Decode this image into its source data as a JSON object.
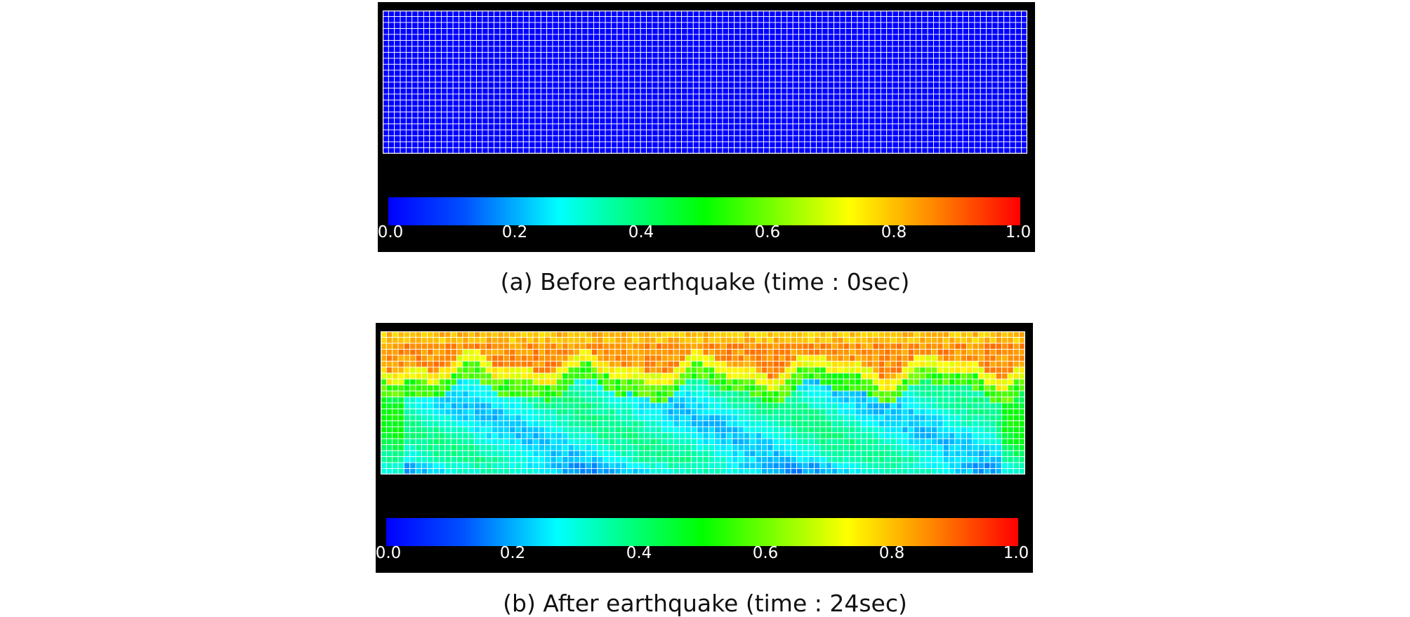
{
  "chart_data": [
    {
      "type": "heatmap",
      "caption": "(a) Before earthquake (time : 0sec)",
      "colorbar": {
        "range": [
          0.0,
          1.0
        ],
        "ticks": [
          "0.0",
          "0.2",
          "0.4",
          "0.6",
          "0.8",
          "1.0"
        ],
        "colormap": "jet"
      },
      "grid": {
        "columns": 110,
        "rows": 24,
        "state": "uniform",
        "value": 0.0
      }
    },
    {
      "type": "heatmap",
      "caption": "(b) After earthquake (time : 24sec)",
      "colorbar": {
        "range": [
          0.0,
          1.0
        ],
        "ticks": [
          "0.0",
          "0.2",
          "0.4",
          "0.6",
          "0.8",
          "1.0"
        ],
        "colormap": "jet"
      },
      "grid": {
        "columns": 110,
        "rows": 24,
        "state": "excess pore pressure ratio field",
        "upper_zone_value": 0.85,
        "lower_zone_value": 0.3,
        "transition_value": 0.55
      }
    }
  ],
  "colors": {
    "background": "#000000",
    "mesh_line": "#ffffff",
    "caption_text": "#111111"
  }
}
